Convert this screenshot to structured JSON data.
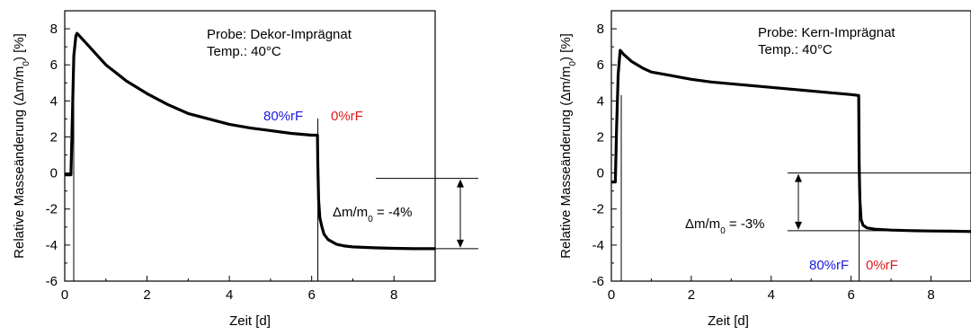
{
  "colors": {
    "trace": "#000000",
    "rh80": "#1a1ae0",
    "rh0": "#e01a1a"
  },
  "chart_data": [
    {
      "type": "line",
      "xlabel": "Zeit [d]",
      "ylabel_prefix": "Relative Masseänderung (Δm/m",
      "ylabel_sub": "0",
      "ylabel_suffix": ") [%]",
      "xlim": [
        0,
        9
      ],
      "ylim": [
        -6,
        9
      ],
      "xticks": [
        "0",
        "2",
        "4",
        "6",
        "8"
      ],
      "xtick_values": [
        0,
        2,
        4,
        6,
        8
      ],
      "yticks": [
        "-6",
        "-4",
        "-2",
        "0",
        "2",
        "4",
        "6",
        "8"
      ],
      "ytick_values": [
        -6,
        -4,
        -2,
        0,
        2,
        4,
        6,
        8
      ],
      "legend": {
        "sample": "Probe: Dekor-Imprägnat",
        "temp": "Temp.: 40°C"
      },
      "rh_high_label": "80%rF",
      "rh_low_label": "0%rF",
      "delta_label_prefix": "Δm/m",
      "delta_label_sub": "0",
      "delta_label_suffix": " = -4%",
      "switch_day": 6.15,
      "delta_levels": [
        -0.1,
        -4.2
      ],
      "series": [
        {
          "x": [
            0,
            0.15,
            0.18,
            0.22,
            0.27,
            0.3,
            0.4,
            0.6,
            0.8,
            1.0,
            1.5,
            2.0,
            2.5,
            3.0,
            3.5,
            4.0,
            4.5,
            5.0,
            5.5,
            6.0,
            6.14,
            6.15,
            6.17,
            6.2,
            6.25,
            6.3,
            6.4,
            6.6,
            6.8,
            7.0,
            7.5,
            8.0,
            8.5,
            9.0
          ],
          "y": [
            -0.1,
            -0.1,
            2.5,
            6.5,
            7.6,
            7.75,
            7.5,
            7.0,
            6.5,
            6.0,
            5.1,
            4.4,
            3.8,
            3.3,
            3.0,
            2.7,
            2.5,
            2.35,
            2.2,
            2.1,
            2.1,
            0.5,
            -1.5,
            -2.5,
            -3.0,
            -3.4,
            -3.7,
            -3.95,
            -4.05,
            -4.1,
            -4.15,
            -4.18,
            -4.2,
            -4.2
          ]
        }
      ]
    },
    {
      "type": "line",
      "xlabel": "Zeit [d]",
      "ylabel_prefix": "Relative Masseänderung (Δm/m",
      "ylabel_sub": "0",
      "ylabel_suffix": ") [%]",
      "xlim": [
        0,
        9
      ],
      "ylim": [
        -6,
        9
      ],
      "xticks": [
        "0",
        "2",
        "4",
        "6",
        "8"
      ],
      "xtick_values": [
        0,
        2,
        4,
        6,
        8
      ],
      "yticks": [
        "-6",
        "-4",
        "-2",
        "0",
        "2",
        "4",
        "6",
        "8"
      ],
      "ytick_values": [
        -6,
        -4,
        -2,
        0,
        2,
        4,
        6,
        8
      ],
      "legend": {
        "sample": "Probe: Kern-Imprägnat",
        "temp": "Temp.: 40°C"
      },
      "rh_high_label": "80%rF",
      "rh_low_label": "0%rF",
      "delta_label_prefix": "Δm/m",
      "delta_label_sub": "0",
      "delta_label_suffix": " = -3%",
      "switch_day": 6.2,
      "delta_levels": [
        0.0,
        -3.2
      ],
      "series": [
        {
          "x": [
            0,
            0.1,
            0.13,
            0.17,
            0.22,
            0.3,
            0.5,
            0.8,
            1.0,
            1.5,
            2.0,
            2.5,
            3.0,
            3.5,
            4.0,
            4.5,
            5.0,
            5.5,
            6.0,
            6.19,
            6.2,
            6.22,
            6.25,
            6.3,
            6.4,
            6.6,
            7.0,
            7.5,
            8.0,
            8.5,
            9.0
          ],
          "y": [
            -0.5,
            -0.5,
            2.5,
            5.5,
            6.8,
            6.6,
            6.2,
            5.8,
            5.6,
            5.4,
            5.2,
            5.05,
            4.95,
            4.85,
            4.75,
            4.65,
            4.55,
            4.45,
            4.35,
            4.3,
            0.5,
            -1.5,
            -2.6,
            -2.9,
            -3.05,
            -3.12,
            -3.17,
            -3.2,
            -3.22,
            -3.23,
            -3.25
          ]
        }
      ]
    }
  ]
}
